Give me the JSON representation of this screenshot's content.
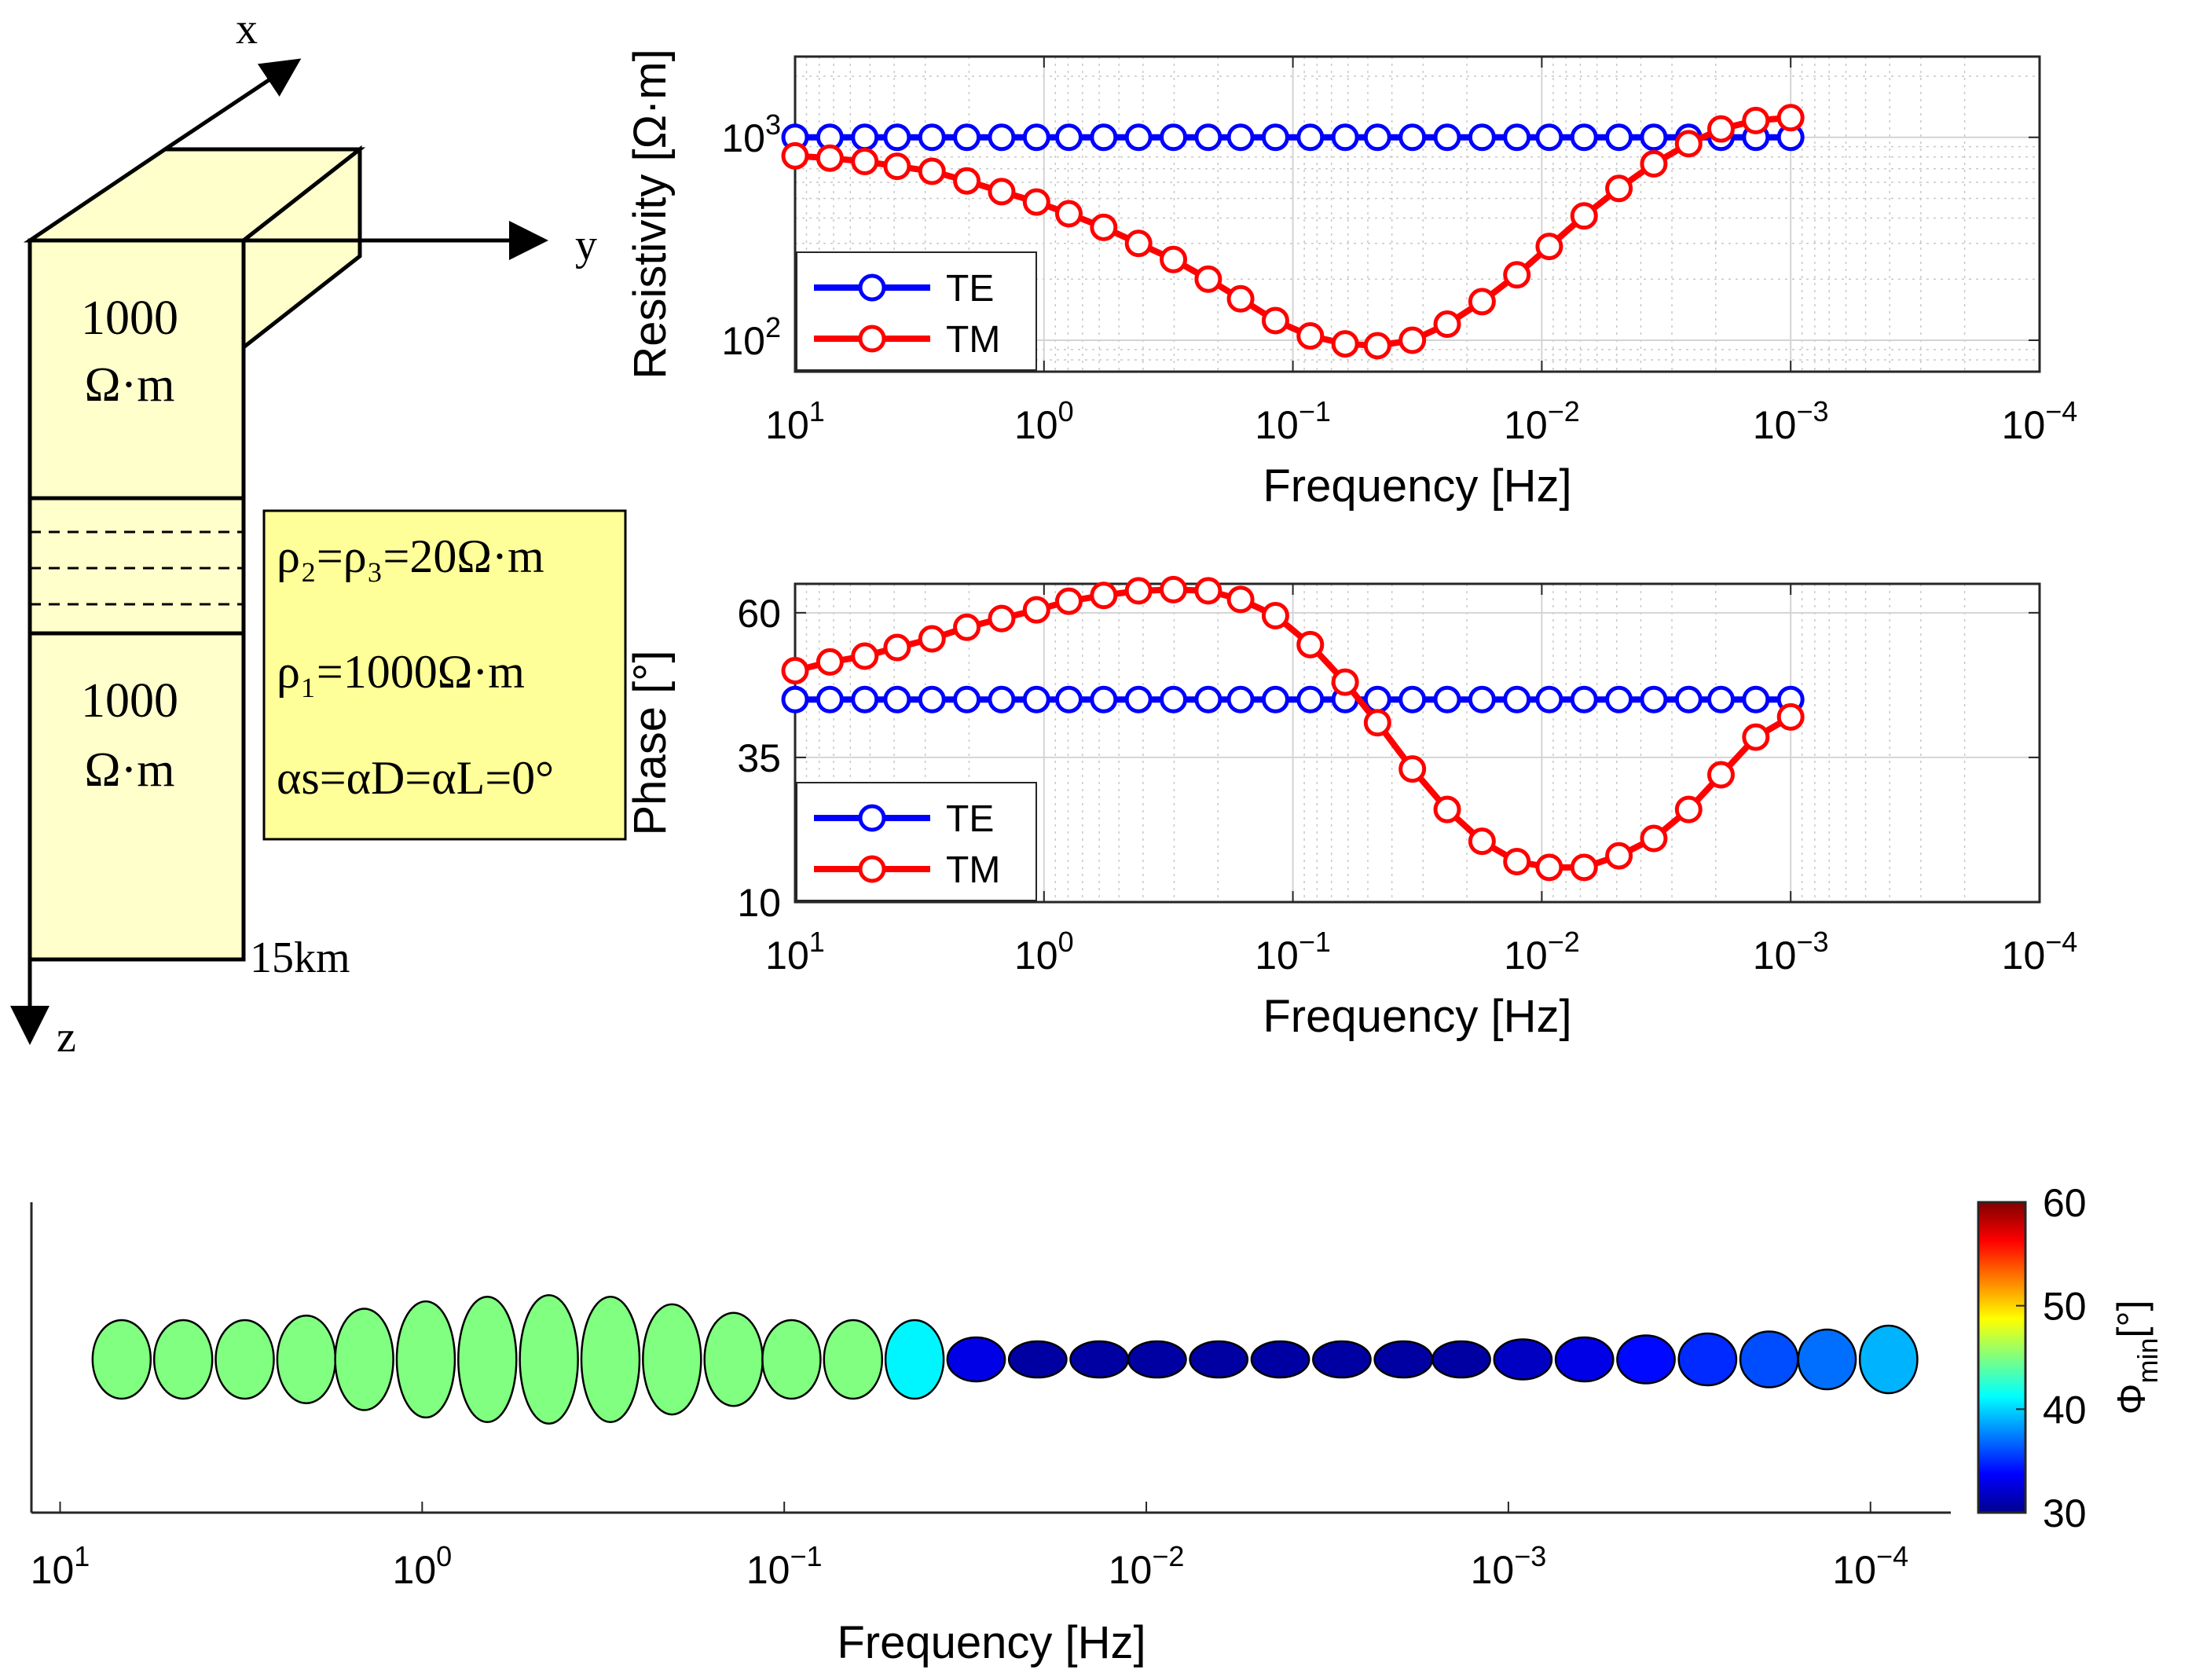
{
  "model": {
    "axis_x": "x",
    "axis_y": "y",
    "axis_z": "z",
    "top_res_value": "1000",
    "top_res_unit": "Ω·m",
    "bottom_res_value": "1000",
    "bottom_res_unit": "Ω·m",
    "depth_label": "15km",
    "param_rho23": "ρ₂=ρ₃=20Ω·m",
    "param_rho1": "ρ₁=1000Ω·m",
    "param_alpha": "αs=αD=αL=0°"
  },
  "colors": {
    "te": "#0000ff",
    "tm": "#ff0000",
    "block_fill": "#ffffcc",
    "param_box_fill": "#ffff99"
  },
  "chart_data": [
    {
      "type": "line",
      "id": "resistivity",
      "xscale": "log",
      "xdir": "reverse",
      "yscale": "log",
      "xlabel": "Frequency [Hz]",
      "ylabel": "Resistivity [Ω·m]",
      "xlim": [
        10,
        0.0001
      ],
      "ylim": [
        70,
        2500
      ],
      "xticks": [
        "10^1",
        "10^0",
        "10^-1",
        "10^-2",
        "10^-3",
        "10^-4"
      ],
      "yticks": [
        "10^2",
        "10^3"
      ],
      "legend": "bottom-left",
      "grid": true,
      "series": [
        {
          "name": "TE",
          "values": [
            1000,
            1000,
            1000,
            1000,
            1000,
            1000,
            1000,
            1000,
            1000,
            1000,
            1000,
            1000,
            1000,
            1000,
            1000,
            1000,
            1000,
            1000,
            1000,
            1000,
            1000,
            1000,
            1000,
            1000,
            1000,
            1000,
            1000,
            1000,
            1000,
            1000
          ]
        },
        {
          "name": "TM",
          "values": [
            810,
            790,
            760,
            720,
            680,
            610,
            540,
            480,
            420,
            360,
            300,
            250,
            200,
            160,
            125,
            105,
            96,
            94,
            100,
            120,
            155,
            210,
            290,
            410,
            560,
            740,
            930,
            1100,
            1210,
            1250
          ]
        }
      ],
      "x_exponents": [
        1,
        0.86,
        0.72,
        0.59,
        0.45,
        0.31,
        0.17,
        0.03,
        -0.1,
        -0.24,
        -0.38,
        -0.52,
        -0.66,
        -0.79,
        -0.93,
        -1.07,
        -1.21,
        -1.34,
        -1.48,
        -1.62,
        -1.76,
        -1.9,
        -2.03,
        -2.17,
        -2.31,
        -2.45,
        -2.59,
        -2.72,
        -2.86,
        -3
      ]
    },
    {
      "type": "line",
      "id": "phase",
      "xscale": "log",
      "xdir": "reverse",
      "xlabel": "Frequency [Hz]",
      "ylabel": "Phase [°]",
      "xlim": [
        10,
        0.0001
      ],
      "ylim": [
        10,
        65
      ],
      "xticks": [
        "10^1",
        "10^0",
        "10^-1",
        "10^-2",
        "10^-3",
        "10^-4"
      ],
      "yticks": [
        "10",
        "35",
        "60"
      ],
      "legend": "bottom-left",
      "grid": true,
      "series": [
        {
          "name": "TE",
          "values": [
            45,
            45,
            45,
            45,
            45,
            45,
            45,
            45,
            45,
            45,
            45,
            45,
            45,
            45,
            45,
            45,
            45,
            45,
            45,
            45,
            45,
            45,
            45,
            45,
            45,
            45,
            45,
            45,
            45,
            45
          ]
        },
        {
          "name": "TM",
          "values": [
            50,
            51.5,
            52.5,
            54,
            55.5,
            57.5,
            59,
            60.5,
            62,
            63,
            63.8,
            64,
            63.8,
            62.3,
            59.5,
            54.5,
            48,
            41,
            33,
            26,
            20.5,
            17,
            16,
            16,
            18,
            21,
            26,
            32,
            38.5,
            42
          ]
        }
      ],
      "x_exponents": [
        1,
        0.86,
        0.72,
        0.59,
        0.45,
        0.31,
        0.17,
        0.03,
        -0.1,
        -0.24,
        -0.38,
        -0.52,
        -0.66,
        -0.79,
        -0.93,
        -1.07,
        -1.21,
        -1.34,
        -1.48,
        -1.62,
        -1.76,
        -1.9,
        -2.03,
        -2.17,
        -2.31,
        -2.45,
        -2.59,
        -2.72,
        -2.86,
        -3
      ]
    },
    {
      "type": "scatter",
      "id": "phase-tensor-ellipses",
      "xscale": "log",
      "xdir": "reverse",
      "xlabel": "Frequency [Hz]",
      "xlim": [
        12,
        6e-05
      ],
      "xticks": [
        "10^1",
        "10^0",
        "10^-1",
        "10^-2",
        "10^-3",
        "10^-4"
      ],
      "colorbar_label": "Φmin[°]",
      "colorbar_range": [
        30,
        60
      ],
      "colorbar_ticks": [
        "30",
        "40",
        "50",
        "60"
      ],
      "x_exponents": [
        0.83,
        0.66,
        0.49,
        0.32,
        0.16,
        -0.01,
        -0.18,
        -0.35,
        -0.52,
        -0.69,
        -0.86,
        -1.02,
        -1.19,
        -1.36,
        -1.53,
        -1.7,
        -1.87,
        -2.03,
        -2.2,
        -2.37,
        -2.54,
        -2.71,
        -2.87,
        -3.04,
        -3.21,
        -3.38,
        -3.55,
        -3.72,
        -3.88,
        -4.05
      ],
      "phi_min": [
        45,
        45,
        45,
        45,
        45,
        45,
        45,
        45,
        45,
        45,
        45,
        45,
        45,
        41,
        33,
        31,
        31,
        31,
        31,
        31,
        31,
        31,
        31,
        32,
        33,
        34,
        35,
        36,
        37,
        39
      ],
      "phi_max": [
        45,
        46,
        48.5,
        51,
        53.5,
        56,
        57.5,
        58,
        57.5,
        55,
        52,
        49,
        47,
        41,
        33,
        31,
        31,
        31,
        31,
        31,
        31,
        31,
        31,
        32,
        33,
        34,
        35,
        36,
        37,
        39
      ]
    }
  ]
}
